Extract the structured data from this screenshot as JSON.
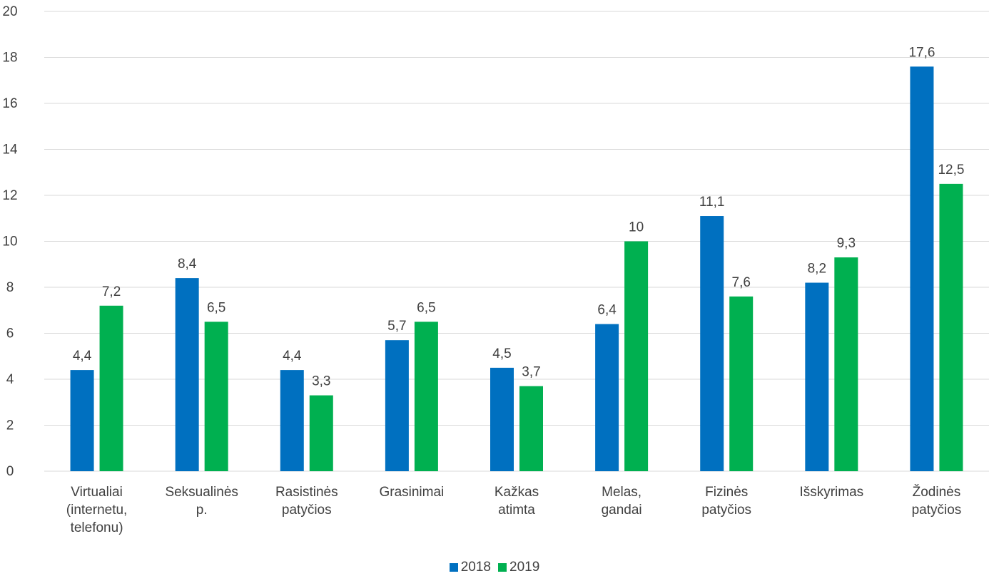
{
  "chart_data": {
    "type": "bar",
    "categories": [
      [
        "Virtualiai",
        "(internetu,",
        "telefonu)"
      ],
      [
        "Seksualinės",
        "p."
      ],
      [
        "Rasistinės",
        "patyčios"
      ],
      [
        "Grasinimai"
      ],
      [
        "Kažkas",
        "atimta"
      ],
      [
        "Melas,",
        "gandai"
      ],
      [
        "Fizinės",
        "patyčios"
      ],
      [
        "Išskyrimas"
      ],
      [
        "Žodinės",
        "patyčios"
      ]
    ],
    "series": [
      {
        "name": "2018",
        "color": "#0070c0",
        "values": [
          4.4,
          8.4,
          4.4,
          5.7,
          4.5,
          6.4,
          11.1,
          8.2,
          17.6
        ],
        "labels": [
          "4,4",
          "8,4",
          "4,4",
          "5,7",
          "4,5",
          "6,4",
          "11,1",
          "8,2",
          "17,6"
        ]
      },
      {
        "name": "2019",
        "color": "#00b050",
        "values": [
          7.2,
          6.5,
          3.3,
          6.5,
          3.7,
          10,
          7.6,
          9.3,
          12.5
        ],
        "labels": [
          "7,2",
          "6,5",
          "3,3",
          "6,5",
          "3,7",
          "10",
          "7,6",
          "9,3",
          "12,5"
        ]
      }
    ],
    "ylim": [
      0,
      20
    ],
    "yticks": [
      "0",
      "2",
      "4",
      "6",
      "8",
      "10",
      "12",
      "14",
      "16",
      "18",
      "20"
    ],
    "grid": true,
    "legend_position": "bottom"
  }
}
